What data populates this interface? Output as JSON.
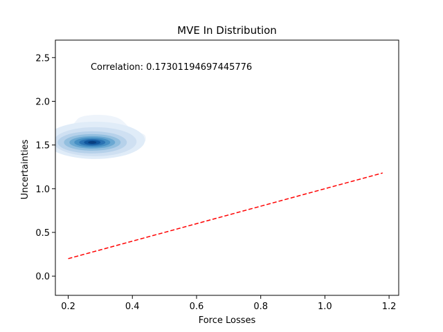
{
  "chart_data": {
    "type": "kde_contour_with_reference_line",
    "title": "MVE In Distribution",
    "xlabel": "Force Losses",
    "ylabel": "Uncertainties",
    "xlim": [
      0.16,
      1.23
    ],
    "ylim": [
      -0.22,
      2.7
    ],
    "xticks": [
      0.2,
      0.4,
      0.6,
      0.8,
      1.0,
      1.2
    ],
    "xtick_labels": [
      "0.2",
      "0.4",
      "0.6",
      "0.8",
      "1.0",
      "1.2"
    ],
    "yticks": [
      0.0,
      0.5,
      1.0,
      1.5,
      2.0,
      2.5
    ],
    "ytick_labels": [
      "0.0",
      "0.5",
      "1.0",
      "1.5",
      "2.0",
      "2.5"
    ],
    "annotation": "Correlation: 0.17301194697445776",
    "grid": false,
    "reference_line": {
      "x": [
        0.2,
        1.18
      ],
      "y": [
        0.2,
        1.18
      ],
      "color": "#ff0000",
      "style": "dashed"
    },
    "density": {
      "center": [
        0.275,
        1.53
      ],
      "outer_region": {
        "x_range": [
          0.195,
          0.445
        ],
        "y_range": [
          1.48,
          1.86
        ]
      },
      "colormap": "Blues",
      "levels": 9
    }
  }
}
